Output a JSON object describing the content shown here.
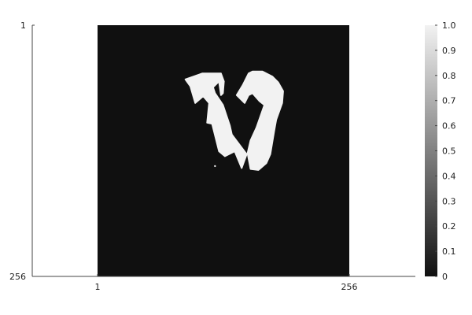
{
  "chart_data": {
    "type": "heatmap",
    "title": "",
    "xlabel": "",
    "ylabel": "",
    "x_ticks": [
      "1",
      "256"
    ],
    "y_ticks": [
      "1",
      "256"
    ],
    "xlim": [
      1,
      256
    ],
    "ylim": [
      1,
      256
    ],
    "y_axis_direction": "top-to-bottom",
    "grid": false,
    "legend": "none",
    "background_value": 0,
    "mask_value": 1,
    "colormap": "grays",
    "colorbar": {
      "position": "right",
      "range": [
        0,
        1
      ],
      "ticks": [
        "0",
        "0.1",
        "0.2",
        "0.3",
        "0.4",
        "0.5",
        "0.6",
        "0.7",
        "0.8",
        "0.9",
        "1.0"
      ]
    },
    "colors": {
      "low": "#101010",
      "high": "#f2f2f2",
      "axis": "#444444",
      "text": "#222222"
    },
    "mask_shapes": [
      {
        "name": "left-lobe",
        "points": [
          [
            107,
            50
          ],
          [
            90,
            56
          ],
          [
            95,
            63
          ],
          [
            100,
            80
          ],
          [
            108,
            73
          ],
          [
            114,
            80
          ],
          [
            112,
            100
          ],
          [
            117,
            101
          ],
          [
            124,
            129
          ],
          [
            130,
            134
          ],
          [
            140,
            129
          ],
          [
            147,
            146
          ],
          [
            152,
            132
          ],
          [
            137,
            112
          ],
          [
            135,
            103
          ],
          [
            128,
            82
          ],
          [
            120,
            70
          ],
          [
            118,
            64
          ],
          [
            124,
            58
          ],
          [
            126,
            72
          ],
          [
            128,
            70
          ],
          [
            129,
            58
          ],
          [
            126,
            50
          ]
        ]
      },
      {
        "name": "right-lobe",
        "points": [
          [
            154,
            50
          ],
          [
            148,
            62
          ],
          [
            142,
            72
          ],
          [
            150,
            80
          ],
          [
            154,
            72
          ],
          [
            158,
            70
          ],
          [
            165,
            78
          ],
          [
            170,
            82
          ],
          [
            162,
            105
          ],
          [
            156,
            118
          ],
          [
            153,
            131
          ],
          [
            156,
            147
          ],
          [
            164,
            148
          ],
          [
            172,
            141
          ],
          [
            176,
            132
          ],
          [
            180,
            108
          ],
          [
            182,
            97
          ],
          [
            188,
            80
          ],
          [
            189,
            68
          ],
          [
            184,
            59
          ],
          [
            178,
            53
          ],
          [
            168,
            48
          ],
          [
            158,
            48
          ]
        ]
      }
    ],
    "mask_specks": [
      [
        120,
        144
      ]
    ]
  }
}
